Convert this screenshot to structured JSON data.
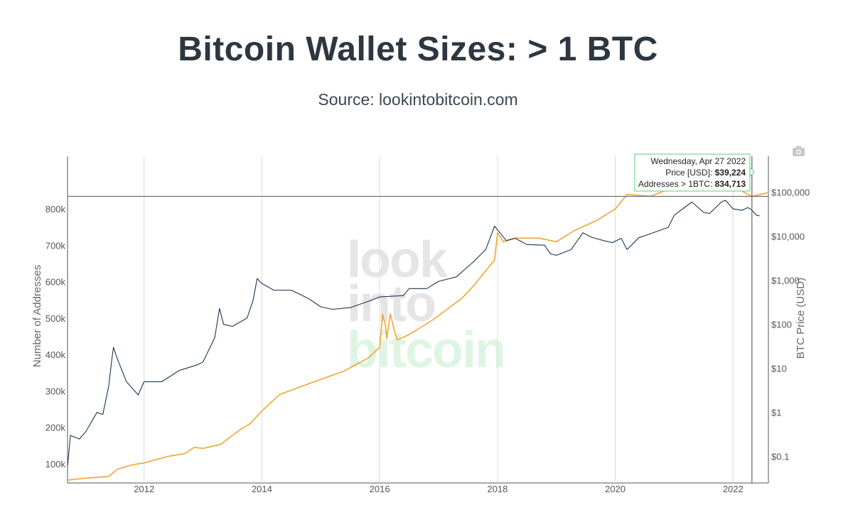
{
  "title": "Bitcoin Wallet Sizes: > 1 BTC",
  "subtitle": "Source: lookintobitcoin.com",
  "watermark": [
    "look",
    "into",
    "bitcoin"
  ],
  "camera_icon": "camera-icon",
  "colors": {
    "addresses": "#f0a631",
    "price": "#1c3550",
    "grid": "#dddddd",
    "tooltip_border": "#7bd48f",
    "watermark_gray": "#e5e5e5",
    "watermark_green": "#dff5e3"
  },
  "tooltip": {
    "date": "Wednesday, Apr 27 2022",
    "price_label": "Price [USD]: ",
    "price_value": "$39,224",
    "addr_label": "Addresses > 1BTC: ",
    "addr_value": "834,713"
  },
  "chart_data": {
    "type": "line",
    "xlim": [
      2010.7,
      2022.6
    ],
    "x_ticks": [
      2012,
      2014,
      2016,
      2018,
      2020,
      2022
    ],
    "x_tick_labels": [
      "2012",
      "2014",
      "2016",
      "2018",
      "2020",
      "2022"
    ],
    "y_left": {
      "label": "Number of Addresses",
      "range": [
        47000,
        900000
      ],
      "ticks": [
        100000,
        200000,
        300000,
        400000,
        500000,
        600000,
        700000,
        800000
      ],
      "tick_labels": [
        "100k",
        "200k",
        "300k",
        "400k",
        "500k",
        "600k",
        "700k",
        "800k"
      ]
    },
    "y_right": {
      "label": "BTC Price (USD)",
      "scale": "log",
      "range": [
        0.025,
        280000
      ],
      "ticks": [
        0.1,
        1,
        10,
        100,
        1000,
        10000,
        100000
      ],
      "tick_labels": [
        "$0.1",
        "$1",
        "$10",
        "$100",
        "$1,000",
        "$10,000",
        "$100,000"
      ]
    },
    "crosshair": {
      "x": 2022.32,
      "y": 834713
    },
    "series": [
      {
        "axis": "left",
        "points": [
          [
            2010.7,
            55000
          ],
          [
            2011.0,
            60000
          ],
          [
            2011.4,
            65000
          ],
          [
            2011.55,
            85000
          ],
          [
            2011.8,
            97000
          ],
          [
            2012.0,
            102000
          ],
          [
            2012.4,
            120000
          ],
          [
            2012.7,
            128000
          ],
          [
            2012.85,
            145000
          ],
          [
            2013.0,
            142000
          ],
          [
            2013.3,
            153000
          ],
          [
            2013.6,
            190000
          ],
          [
            2013.8,
            210000
          ],
          [
            2014.0,
            245000
          ],
          [
            2014.3,
            290000
          ],
          [
            2014.8,
            320000
          ],
          [
            2015.4,
            355000
          ],
          [
            2015.8,
            390000
          ],
          [
            2016.0,
            420000
          ],
          [
            2016.05,
            510000
          ],
          [
            2016.1,
            480000
          ],
          [
            2016.12,
            443000
          ],
          [
            2016.18,
            512000
          ],
          [
            2016.25,
            465000
          ],
          [
            2016.3,
            440000
          ],
          [
            2016.5,
            455000
          ],
          [
            2016.9,
            495000
          ],
          [
            2017.4,
            555000
          ],
          [
            2017.6,
            590000
          ],
          [
            2017.95,
            660000
          ],
          [
            2018.0,
            735000
          ],
          [
            2018.1,
            710000
          ],
          [
            2018.3,
            720000
          ],
          [
            2018.7,
            720000
          ],
          [
            2019.0,
            710000
          ],
          [
            2019.3,
            740000
          ],
          [
            2019.7,
            770000
          ],
          [
            2020.0,
            800000
          ],
          [
            2020.2,
            840000
          ],
          [
            2020.6,
            835000
          ],
          [
            2021.0,
            860000
          ],
          [
            2021.5,
            870000
          ],
          [
            2022.0,
            862000
          ],
          [
            2022.32,
            834713
          ],
          [
            2022.6,
            845000
          ]
        ]
      },
      {
        "axis": "right",
        "points": [
          [
            2010.7,
            0.06
          ],
          [
            2010.75,
            0.3
          ],
          [
            2010.9,
            0.25
          ],
          [
            2011.0,
            0.35
          ],
          [
            2011.2,
            1
          ],
          [
            2011.3,
            0.9
          ],
          [
            2011.4,
            4
          ],
          [
            2011.45,
            15
          ],
          [
            2011.48,
            30
          ],
          [
            2011.55,
            16
          ],
          [
            2011.7,
            5
          ],
          [
            2011.9,
            2.5
          ],
          [
            2012.0,
            5
          ],
          [
            2012.3,
            5
          ],
          [
            2012.6,
            9
          ],
          [
            2012.9,
            12
          ],
          [
            2013.0,
            14
          ],
          [
            2013.2,
            50
          ],
          [
            2013.28,
            230
          ],
          [
            2013.35,
            100
          ],
          [
            2013.5,
            90
          ],
          [
            2013.75,
            140
          ],
          [
            2013.85,
            350
          ],
          [
            2013.92,
            1100
          ],
          [
            2014.0,
            850
          ],
          [
            2014.2,
            600
          ],
          [
            2014.5,
            600
          ],
          [
            2014.8,
            380
          ],
          [
            2015.0,
            250
          ],
          [
            2015.2,
            220
          ],
          [
            2015.5,
            240
          ],
          [
            2015.85,
            350
          ],
          [
            2016.0,
            420
          ],
          [
            2016.4,
            450
          ],
          [
            2016.5,
            650
          ],
          [
            2016.8,
            650
          ],
          [
            2017.0,
            950
          ],
          [
            2017.3,
            1200
          ],
          [
            2017.6,
            2700
          ],
          [
            2017.8,
            5000
          ],
          [
            2017.95,
            17000
          ],
          [
            2018.0,
            14000
          ],
          [
            2018.15,
            8000
          ],
          [
            2018.3,
            9000
          ],
          [
            2018.5,
            6500
          ],
          [
            2018.8,
            6300
          ],
          [
            2018.9,
            4000
          ],
          [
            2019.0,
            3700
          ],
          [
            2019.25,
            5000
          ],
          [
            2019.45,
            12000
          ],
          [
            2019.6,
            9500
          ],
          [
            2019.8,
            8000
          ],
          [
            2019.95,
            7200
          ],
          [
            2020.1,
            9000
          ],
          [
            2020.2,
            5000
          ],
          [
            2020.4,
            9300
          ],
          [
            2020.6,
            11500
          ],
          [
            2020.9,
            16000
          ],
          [
            2021.0,
            30000
          ],
          [
            2021.3,
            60000
          ],
          [
            2021.5,
            35000
          ],
          [
            2021.6,
            33000
          ],
          [
            2021.8,
            60000
          ],
          [
            2021.87,
            66000
          ],
          [
            2022.0,
            42000
          ],
          [
            2022.15,
            39000
          ],
          [
            2022.25,
            45000
          ],
          [
            2022.32,
            39224
          ],
          [
            2022.4,
            30000
          ],
          [
            2022.45,
            29000
          ]
        ]
      }
    ]
  }
}
